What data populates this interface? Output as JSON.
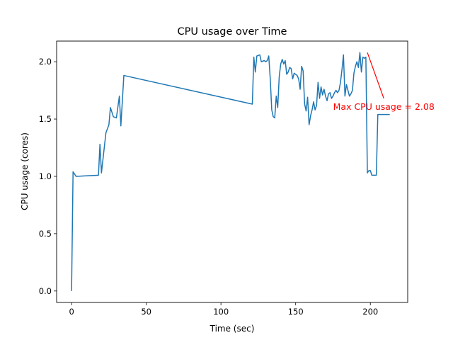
{
  "chart_data": {
    "type": "line",
    "title": "CPU usage over Time",
    "xlabel": "Time (sec)",
    "ylabel": "CPU usage (cores)",
    "xlim": [
      -10,
      225
    ],
    "ylim": [
      -0.1,
      2.18
    ],
    "xticks": [
      0,
      50,
      100,
      150,
      200
    ],
    "yticks": [
      0.0,
      0.5,
      1.0,
      1.5,
      2.0
    ],
    "xtick_labels": [
      "0",
      "50",
      "100",
      "150",
      "200"
    ],
    "ytick_labels": [
      "0.0",
      "0.5",
      "1.0",
      "1.5",
      "2.0"
    ],
    "grid": false,
    "line_color": "#1f77b4",
    "annotation": {
      "text": "Max CPU usage = 2.08",
      "color": "#ff0000",
      "point": [
        198,
        2.08
      ],
      "text_anchor_point": [
        209,
        1.68
      ]
    },
    "series": [
      {
        "x": [
          0,
          1,
          3,
          18,
          19,
          20,
          23,
          25,
          26,
          28,
          30,
          32,
          33,
          35,
          121,
          122,
          123,
          124,
          126,
          127,
          129,
          130,
          131,
          132,
          133,
          134,
          135,
          136,
          137,
          138,
          139,
          140,
          141,
          142,
          143,
          144,
          145,
          146,
          147,
          148,
          149,
          150,
          151,
          152,
          153,
          154,
          155,
          156,
          157,
          158,
          159,
          160,
          161,
          162,
          163,
          164,
          165,
          166,
          167,
          168,
          169,
          170,
          171,
          172,
          173,
          174,
          175,
          176,
          177,
          178,
          179,
          180,
          181,
          182,
          183,
          184,
          185,
          186,
          187,
          188,
          189,
          190,
          191,
          192,
          193,
          194,
          195,
          196,
          197,
          198,
          199,
          200,
          201,
          202,
          203,
          204,
          205,
          206,
          207,
          208,
          209,
          210,
          211,
          212,
          213
        ],
        "y": [
          0.0,
          1.04,
          1.0,
          1.01,
          1.28,
          1.03,
          1.38,
          1.45,
          1.6,
          1.52,
          1.51,
          1.7,
          1.44,
          1.88,
          1.63,
          2.04,
          1.91,
          2.05,
          2.06,
          2.0,
          2.01,
          2.0,
          2.01,
          2.05,
          1.85,
          1.58,
          1.52,
          1.51,
          1.7,
          1.6,
          1.87,
          1.98,
          2.02,
          1.98,
          2.01,
          1.89,
          1.91,
          1.95,
          1.94,
          1.85,
          1.9,
          1.89,
          1.88,
          1.85,
          1.76,
          1.96,
          1.92,
          1.63,
          1.57,
          1.69,
          1.45,
          1.53,
          1.58,
          1.65,
          1.58,
          1.62,
          1.82,
          1.68,
          1.78,
          1.71,
          1.76,
          1.7,
          1.66,
          1.72,
          1.73,
          1.68,
          1.7,
          1.73,
          1.75,
          1.73,
          1.75,
          1.82,
          1.93,
          2.06,
          1.7,
          1.8,
          1.75,
          1.7,
          1.72,
          1.75,
          1.9,
          1.96,
          2.0,
          1.95,
          2.08,
          1.91,
          2.04,
          2.03,
          2.04,
          1.03,
          1.05,
          1.05,
          1.01,
          1.01,
          1.01,
          1.01,
          1.54,
          1.54,
          1.54,
          1.54,
          1.54,
          1.54,
          1.54,
          1.54,
          1.54
        ]
      }
    ]
  }
}
